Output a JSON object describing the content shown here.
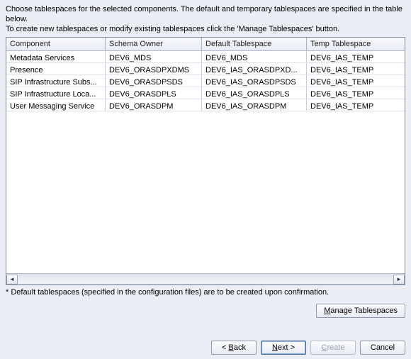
{
  "instructions": {
    "line1": "Choose tablespaces for the selected components. The default and temporary tablespaces are specified in the table below.",
    "line2": "To create new tablespaces or modify existing tablespaces click the 'Manage Tablespaces' button."
  },
  "table": {
    "columns": [
      "Component",
      "Schema Owner",
      "Default Tablespace",
      "Temp Tablespace"
    ],
    "rows": [
      [
        "Metadata Services",
        "DEV6_MDS",
        "DEV6_MDS",
        "DEV6_IAS_TEMP"
      ],
      [
        "Presence",
        "DEV6_ORASDPXDMS",
        "DEV6_IAS_ORASDPXD...",
        "DEV6_IAS_TEMP"
      ],
      [
        "SIP Infrastructure Subs...",
        "DEV6_ORASDPSDS",
        "DEV6_IAS_ORASDPSDS",
        "DEV6_IAS_TEMP"
      ],
      [
        "SIP Infrastructure Loca...",
        "DEV6_ORASDPLS",
        "DEV6_IAS_ORASDPLS",
        "DEV6_IAS_TEMP"
      ],
      [
        "User Messaging Service",
        "DEV6_ORASDPM",
        "DEV6_IAS_ORASDPM",
        "DEV6_IAS_TEMP"
      ]
    ]
  },
  "footnote": "* Default tablespaces (specified in the configuration files) are to be created upon confirmation.",
  "buttons": {
    "manage": "Manage Tablespaces",
    "back": "< Back",
    "next": "Next >",
    "create": "Create",
    "cancel": "Cancel"
  }
}
